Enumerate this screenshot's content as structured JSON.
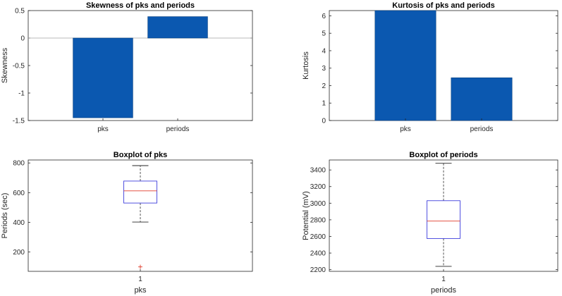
{
  "chart_data": [
    {
      "type": "bar",
      "title": "Skewness of pks and periods",
      "xlabel": "",
      "ylabel": "Skewness",
      "categories": [
        "pks",
        "periods"
      ],
      "values": [
        -1.45,
        0.39
      ],
      "ylim": [
        -1.5,
        0.5
      ],
      "yticks": [
        0.5,
        0,
        -0.5,
        -1,
        -1.5
      ],
      "ytick_labels": [
        "0.5",
        "0",
        "-0.5",
        "-1",
        "-1.5"
      ],
      "bar_color": "#0b58b0",
      "zero_line": true
    },
    {
      "type": "bar",
      "title": "Kurtosis of pks and periods",
      "xlabel": "",
      "ylabel": "Kurtosis",
      "categories": [
        "pks",
        "periods"
      ],
      "values": [
        6.3,
        2.45
      ],
      "ylim": [
        0,
        6.3
      ],
      "yticks": [
        6,
        5,
        4,
        3,
        2,
        1,
        0
      ],
      "ytick_labels": [
        "6",
        "5",
        "4",
        "3",
        "2",
        "1",
        "0"
      ],
      "bar_color": "#0b58b0"
    },
    {
      "type": "boxplot",
      "title": "Boxplot of pks",
      "xlabel": "pks",
      "ylabel": "Periods (sec)",
      "x_tick_labels": [
        "1"
      ],
      "ylim": [
        70,
        820
      ],
      "yticks": [
        800,
        600,
        400,
        200
      ],
      "ytick_labels": [
        "800",
        "600",
        "400",
        "200"
      ],
      "stats": {
        "q1": 530,
        "median": 612,
        "q3": 678,
        "whisker_low": 402,
        "whisker_high": 782,
        "outliers": [
          100
        ]
      }
    },
    {
      "type": "boxplot",
      "title": "Boxplot of periods",
      "xlabel": "periods",
      "ylabel": "Potential (mV)",
      "x_tick_labels": [
        "1"
      ],
      "ylim": [
        2180,
        3520
      ],
      "yticks": [
        3400,
        3200,
        3000,
        2800,
        2600,
        2400,
        2200
      ],
      "ytick_labels": [
        "3400",
        "3200",
        "3000",
        "2800",
        "2600",
        "2400",
        "2200"
      ],
      "stats": {
        "q1": 2575,
        "median": 2785,
        "q3": 3030,
        "whisker_low": 2240,
        "whisker_high": 3480,
        "outliers": []
      }
    }
  ],
  "colors": {
    "bar": "#0b58b0",
    "box": "#3f3fdd",
    "median": "#e03a2a",
    "whisker": "#262626",
    "outlier": "#e03a2a"
  }
}
